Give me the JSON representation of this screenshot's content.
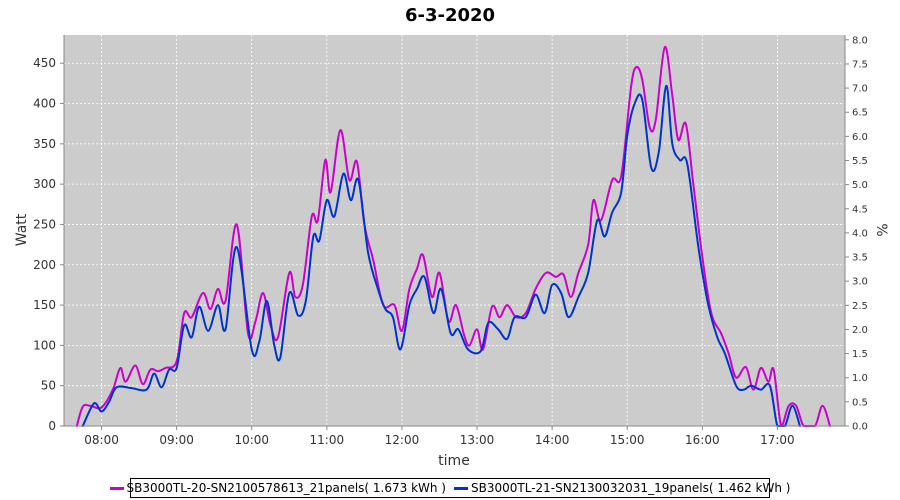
{
  "chart_data": {
    "type": "line",
    "title": "6-3-2020",
    "xlabel": "time",
    "ylabel": "Watt",
    "ylabel_right": "%",
    "xlim": [
      7.5,
      17.9
    ],
    "ylim": [
      0,
      485
    ],
    "ylim_right": [
      0,
      8.1
    ],
    "x_ticks": [
      "08:00",
      "09:00",
      "10:00",
      "11:00",
      "12:00",
      "13:00",
      "14:00",
      "15:00",
      "16:00",
      "17:00"
    ],
    "y_ticks": [
      0,
      50,
      100,
      150,
      200,
      250,
      300,
      350,
      400,
      450
    ],
    "y_ticks_right": [
      "0.0",
      "0.5",
      "1.0",
      "1.5",
      "2.0",
      "2.5",
      "3.0",
      "3.5",
      "4.0",
      "4.5",
      "5.0",
      "5.5",
      "6.0",
      "6.5",
      "7.0",
      "7.5",
      "8.0"
    ],
    "grid": true,
    "legend_position": "bottom",
    "colors": {
      "plot_bg": "#cccccc",
      "grid": "#ffffff"
    },
    "series": [
      {
        "name": "SB3000TL-20-SN2100578613_21panels( 1.673 kWh )",
        "color": "#cc00cc",
        "points": [
          [
            7.67,
            0
          ],
          [
            7.75,
            24
          ],
          [
            7.85,
            25
          ],
          [
            8.0,
            23
          ],
          [
            8.15,
            45
          ],
          [
            8.25,
            72
          ],
          [
            8.32,
            55
          ],
          [
            8.45,
            75
          ],
          [
            8.55,
            52
          ],
          [
            8.65,
            70
          ],
          [
            8.75,
            68
          ],
          [
            8.85,
            72
          ],
          [
            9.0,
            80
          ],
          [
            9.1,
            140
          ],
          [
            9.2,
            135
          ],
          [
            9.35,
            165
          ],
          [
            9.45,
            145
          ],
          [
            9.55,
            170
          ],
          [
            9.65,
            155
          ],
          [
            9.8,
            250
          ],
          [
            9.95,
            115
          ],
          [
            10.05,
            130
          ],
          [
            10.15,
            165
          ],
          [
            10.25,
            125
          ],
          [
            10.35,
            110
          ],
          [
            10.5,
            190
          ],
          [
            10.58,
            160
          ],
          [
            10.68,
            175
          ],
          [
            10.8,
            260
          ],
          [
            10.88,
            255
          ],
          [
            10.98,
            330
          ],
          [
            11.05,
            290
          ],
          [
            11.18,
            367
          ],
          [
            11.3,
            305
          ],
          [
            11.4,
            328
          ],
          [
            11.5,
            250
          ],
          [
            11.62,
            205
          ],
          [
            11.75,
            150
          ],
          [
            11.9,
            150
          ],
          [
            12.0,
            118
          ],
          [
            12.1,
            170
          ],
          [
            12.2,
            195
          ],
          [
            12.28,
            212
          ],
          [
            12.4,
            160
          ],
          [
            12.5,
            190
          ],
          [
            12.62,
            130
          ],
          [
            12.72,
            150
          ],
          [
            12.83,
            112
          ],
          [
            12.9,
            100
          ],
          [
            13.0,
            120
          ],
          [
            13.08,
            95
          ],
          [
            13.2,
            148
          ],
          [
            13.3,
            135
          ],
          [
            13.4,
            150
          ],
          [
            13.52,
            135
          ],
          [
            13.65,
            140
          ],
          [
            13.78,
            170
          ],
          [
            13.92,
            190
          ],
          [
            14.05,
            185
          ],
          [
            14.15,
            188
          ],
          [
            14.25,
            160
          ],
          [
            14.35,
            190
          ],
          [
            14.48,
            225
          ],
          [
            14.55,
            280
          ],
          [
            14.65,
            255
          ],
          [
            14.8,
            305
          ],
          [
            14.92,
            310
          ],
          [
            15.05,
            420
          ],
          [
            15.12,
            445
          ],
          [
            15.2,
            430
          ],
          [
            15.3,
            370
          ],
          [
            15.38,
            380
          ],
          [
            15.5,
            470
          ],
          [
            15.6,
            410
          ],
          [
            15.68,
            355
          ],
          [
            15.78,
            375
          ],
          [
            15.88,
            300
          ],
          [
            16.0,
            210
          ],
          [
            16.12,
            140
          ],
          [
            16.25,
            115
          ],
          [
            16.35,
            90
          ],
          [
            16.45,
            60
          ],
          [
            16.58,
            73
          ],
          [
            16.68,
            45
          ],
          [
            16.78,
            72
          ],
          [
            16.88,
            55
          ],
          [
            16.95,
            70
          ],
          [
            17.05,
            0
          ],
          [
            17.15,
            25
          ],
          [
            17.25,
            25
          ],
          [
            17.35,
            0
          ],
          [
            17.5,
            0
          ],
          [
            17.6,
            25
          ],
          [
            17.7,
            0
          ]
        ]
      },
      {
        "name": "SB3000TL-21-SN2130032031_19panels( 1.462 kWh )",
        "color": "#0033cc",
        "points": [
          [
            7.75,
            0
          ],
          [
            7.9,
            28
          ],
          [
            8.0,
            18
          ],
          [
            8.1,
            30
          ],
          [
            8.2,
            48
          ],
          [
            8.4,
            47
          ],
          [
            8.6,
            45
          ],
          [
            8.7,
            65
          ],
          [
            8.8,
            48
          ],
          [
            8.9,
            70
          ],
          [
            9.0,
            72
          ],
          [
            9.1,
            125
          ],
          [
            9.2,
            110
          ],
          [
            9.3,
            148
          ],
          [
            9.42,
            118
          ],
          [
            9.55,
            150
          ],
          [
            9.65,
            120
          ],
          [
            9.8,
            222
          ],
          [
            10.0,
            95
          ],
          [
            10.1,
            105
          ],
          [
            10.2,
            155
          ],
          [
            10.3,
            100
          ],
          [
            10.38,
            85
          ],
          [
            10.5,
            165
          ],
          [
            10.62,
            137
          ],
          [
            10.72,
            155
          ],
          [
            10.82,
            235
          ],
          [
            10.9,
            230
          ],
          [
            11.0,
            280
          ],
          [
            11.1,
            260
          ],
          [
            11.22,
            313
          ],
          [
            11.32,
            280
          ],
          [
            11.42,
            305
          ],
          [
            11.55,
            215
          ],
          [
            11.68,
            170
          ],
          [
            11.78,
            145
          ],
          [
            11.88,
            135
          ],
          [
            11.98,
            95
          ],
          [
            12.1,
            150
          ],
          [
            12.2,
            170
          ],
          [
            12.3,
            185
          ],
          [
            12.42,
            140
          ],
          [
            12.52,
            170
          ],
          [
            12.65,
            115
          ],
          [
            12.75,
            120
          ],
          [
            12.88,
            95
          ],
          [
            13.05,
            93
          ],
          [
            13.15,
            128
          ],
          [
            13.28,
            120
          ],
          [
            13.4,
            108
          ],
          [
            13.5,
            135
          ],
          [
            13.65,
            135
          ],
          [
            13.78,
            163
          ],
          [
            13.9,
            140
          ],
          [
            14.0,
            175
          ],
          [
            14.12,
            165
          ],
          [
            14.22,
            135
          ],
          [
            14.35,
            160
          ],
          [
            14.48,
            190
          ],
          [
            14.6,
            255
          ],
          [
            14.7,
            235
          ],
          [
            14.8,
            265
          ],
          [
            14.92,
            290
          ],
          [
            15.0,
            360
          ],
          [
            15.1,
            400
          ],
          [
            15.2,
            405
          ],
          [
            15.32,
            320
          ],
          [
            15.42,
            340
          ],
          [
            15.52,
            422
          ],
          [
            15.6,
            350
          ],
          [
            15.7,
            330
          ],
          [
            15.8,
            325
          ],
          [
            15.95,
            220
          ],
          [
            16.08,
            150
          ],
          [
            16.2,
            110
          ],
          [
            16.3,
            90
          ],
          [
            16.45,
            50
          ],
          [
            16.55,
            45
          ],
          [
            16.65,
            50
          ],
          [
            16.78,
            45
          ],
          [
            16.9,
            50
          ],
          [
            17.0,
            0
          ],
          [
            17.1,
            0
          ],
          [
            17.2,
            25
          ],
          [
            17.3,
            0
          ]
        ]
      }
    ]
  }
}
